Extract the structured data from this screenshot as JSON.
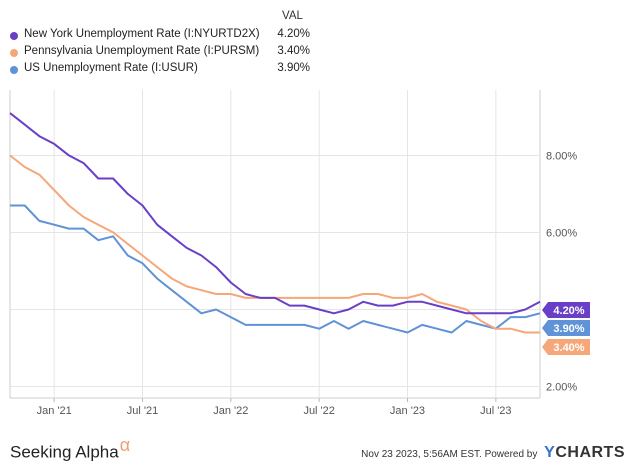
{
  "legend": {
    "header": "VAL",
    "items": [
      {
        "name": "New York Unemployment Rate (I:NYURTD2X)",
        "value": "4.20%",
        "color": "#6a3fc8"
      },
      {
        "name": "Pennsylvania Unemployment Rate (I:PURSM)",
        "value": "3.40%",
        "color": "#f6a77a"
      },
      {
        "name": "US Unemployment Rate (I:USUR)",
        "value": "3.90%",
        "color": "#5f92d6"
      }
    ]
  },
  "footer": {
    "left_text": "Seeking Alpha",
    "left_symbol": "α",
    "timestamp": "Nov 23 2023, 5:56AM EST.",
    "powered_by": "Powered by",
    "brand_y": "Y",
    "brand_rest": "CHARTS"
  },
  "chart_data": {
    "type": "line",
    "title": "",
    "xlabel": "",
    "ylabel": "",
    "x_ticks": [
      "Jan '21",
      "Jul '21",
      "Jan '22",
      "Jul '22",
      "Jan '23",
      "Jul '23"
    ],
    "y_ticks": [
      "2.00%",
      "4.00%",
      "6.00%",
      "8.00%"
    ],
    "ylim": [
      1.7,
      9.7
    ],
    "xlim": [
      "2020-10",
      "2023-10"
    ],
    "x": [
      "2020-10",
      "2020-11",
      "2020-12",
      "2021-01",
      "2021-02",
      "2021-03",
      "2021-04",
      "2021-05",
      "2021-06",
      "2021-07",
      "2021-08",
      "2021-09",
      "2021-10",
      "2021-11",
      "2021-12",
      "2022-01",
      "2022-02",
      "2022-03",
      "2022-04",
      "2022-05",
      "2022-06",
      "2022-07",
      "2022-08",
      "2022-09",
      "2022-10",
      "2022-11",
      "2022-12",
      "2023-01",
      "2023-02",
      "2023-03",
      "2023-04",
      "2023-05",
      "2023-06",
      "2023-07",
      "2023-08",
      "2023-09",
      "2023-10"
    ],
    "series": [
      {
        "name": "New York Unemployment Rate (I:NYURTD2X)",
        "color": "#6a3fc8",
        "end_label": "4.20%",
        "values": [
          9.1,
          8.8,
          8.5,
          8.3,
          8.0,
          7.8,
          7.4,
          7.4,
          7.0,
          6.7,
          6.2,
          5.9,
          5.6,
          5.4,
          5.1,
          4.7,
          4.4,
          4.3,
          4.3,
          4.1,
          4.1,
          4.0,
          3.9,
          4.0,
          4.2,
          4.1,
          4.1,
          4.2,
          4.2,
          4.1,
          4.0,
          3.9,
          3.9,
          3.9,
          3.9,
          4.0,
          4.2
        ]
      },
      {
        "name": "Pennsylvania Unemployment Rate (I:PURSM)",
        "color": "#f6a77a",
        "end_label": "3.40%",
        "values": [
          8.0,
          7.7,
          7.5,
          7.1,
          6.7,
          6.4,
          6.2,
          6.0,
          5.7,
          5.4,
          5.1,
          4.8,
          4.6,
          4.5,
          4.4,
          4.4,
          4.3,
          4.3,
          4.3,
          4.3,
          4.3,
          4.3,
          4.3,
          4.3,
          4.4,
          4.4,
          4.3,
          4.3,
          4.4,
          4.2,
          4.1,
          4.0,
          3.7,
          3.5,
          3.5,
          3.4,
          3.4
        ]
      },
      {
        "name": "US Unemployment Rate (I:USUR)",
        "color": "#5f92d6",
        "end_label": "3.90%",
        "values": [
          6.7,
          6.7,
          6.3,
          6.2,
          6.1,
          6.1,
          5.8,
          5.9,
          5.4,
          5.2,
          4.8,
          4.5,
          4.2,
          3.9,
          4.0,
          3.8,
          3.6,
          3.6,
          3.6,
          3.6,
          3.6,
          3.5,
          3.7,
          3.5,
          3.7,
          3.6,
          3.5,
          3.4,
          3.6,
          3.5,
          3.4,
          3.7,
          3.6,
          3.5,
          3.8,
          3.8,
          3.9
        ]
      }
    ]
  }
}
